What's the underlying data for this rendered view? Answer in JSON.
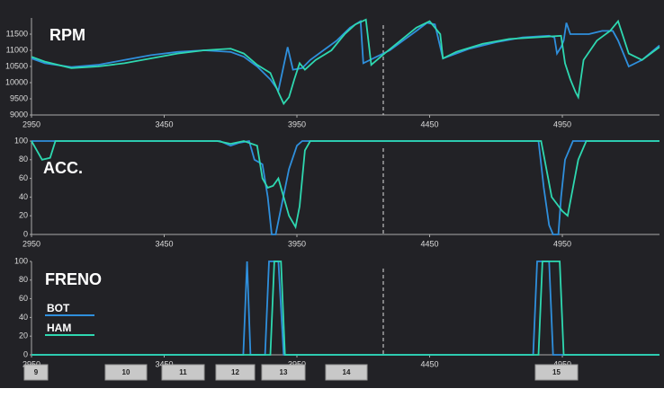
{
  "chart_data": [
    {
      "type": "line",
      "title": "RPM",
      "xlim": [
        2950,
        5316
      ],
      "xticks": [
        2950,
        3450,
        3950,
        4450,
        4950
      ],
      "ylim": [
        9000,
        12000
      ],
      "yticks": [
        9000,
        9500,
        10000,
        10500,
        11000,
        11500
      ],
      "series": [
        {
          "color": "#2f8fdc",
          "x": [
            2950,
            3000,
            3100,
            3200,
            3300,
            3400,
            3500,
            3600,
            3700,
            3750,
            3800,
            3850,
            3880,
            3915,
            3935,
            3970,
            4000,
            4050,
            4100,
            4150,
            4190,
            4200,
            4250,
            4300,
            4350,
            4400,
            4440,
            4470,
            4500,
            4550,
            4600,
            4700,
            4800,
            4900,
            4920,
            4930,
            4945,
            4955,
            4965,
            4980,
            5050,
            5100,
            5140,
            5160,
            5200,
            5250,
            5316
          ],
          "values": [
            10750,
            10600,
            10480,
            10550,
            10700,
            10850,
            10950,
            11000,
            10950,
            10800,
            10500,
            10100,
            9750,
            11100,
            10400,
            10450,
            10700,
            11000,
            11300,
            11700,
            11900,
            10600,
            10800,
            11000,
            11300,
            11600,
            11850,
            11800,
            10750,
            10900,
            11050,
            11250,
            11400,
            11450,
            11400,
            10900,
            11100,
            11300,
            11850,
            11500,
            11500,
            11600,
            11600,
            11300,
            10500,
            10700,
            11150
          ]
        },
        {
          "color": "#2ed8b0",
          "x": [
            2950,
            3000,
            3100,
            3200,
            3300,
            3400,
            3500,
            3600,
            3700,
            3750,
            3800,
            3850,
            3880,
            3900,
            3920,
            3940,
            3960,
            3980,
            4020,
            4080,
            4130,
            4170,
            4210,
            4230,
            4280,
            4340,
            4400,
            4450,
            4490,
            4500,
            4550,
            4650,
            4750,
            4850,
            4945,
            4960,
            4980,
            5000,
            5010,
            5030,
            5080,
            5130,
            5160,
            5200,
            5250,
            5316
          ],
          "values": [
            10800,
            10650,
            10450,
            10500,
            10600,
            10750,
            10900,
            11000,
            11050,
            10900,
            10550,
            10300,
            9700,
            9350,
            9550,
            10100,
            10600,
            10400,
            10700,
            11000,
            11500,
            11800,
            11950,
            10550,
            10900,
            11300,
            11700,
            11900,
            11500,
            10750,
            10950,
            11200,
            11350,
            11400,
            11450,
            10600,
            10100,
            9700,
            9550,
            10700,
            11300,
            11600,
            11900,
            10900,
            10700,
            11100
          ]
        }
      ]
    },
    {
      "type": "line",
      "title": "ACC.",
      "xlim": [
        2950,
        5316
      ],
      "xticks": [
        2950,
        3450,
        3950,
        4450,
        4950
      ],
      "ylim": [
        0,
        100
      ],
      "yticks": [
        0,
        20,
        40,
        60,
        80,
        100
      ],
      "series": [
        {
          "color": "#2f8fdc",
          "x": [
            2950,
            3660,
            3700,
            3730,
            3770,
            3790,
            3820,
            3840,
            3855,
            3870,
            3920,
            3950,
            3970,
            4860,
            4880,
            4900,
            4915,
            4935,
            4945,
            4960,
            4990,
            5316
          ],
          "values": [
            100,
            100,
            95,
            98,
            100,
            80,
            75,
            40,
            0,
            0,
            70,
            95,
            100,
            100,
            50,
            10,
            0,
            0,
            40,
            80,
            100,
            100
          ]
        },
        {
          "color": "#2ed8b0",
          "x": [
            2950,
            2970,
            2990,
            3020,
            3040,
            3650,
            3700,
            3750,
            3800,
            3820,
            3840,
            3860,
            3880,
            3900,
            3920,
            3945,
            3960,
            3980,
            4000,
            4870,
            4890,
            4910,
            4950,
            4970,
            4990,
            5010,
            5040,
            5316
          ],
          "values": [
            100,
            90,
            80,
            82,
            100,
            100,
            97,
            100,
            95,
            60,
            50,
            52,
            60,
            40,
            20,
            8,
            30,
            90,
            100,
            100,
            70,
            40,
            25,
            20,
            50,
            80,
            100,
            100
          ]
        }
      ]
    },
    {
      "type": "line",
      "title": "FRENO",
      "xlim": [
        2950,
        5316
      ],
      "xticks": [
        2950,
        3450,
        3950,
        4450,
        4950
      ],
      "ylim": [
        0,
        100
      ],
      "yticks": [
        0,
        20,
        40,
        60,
        80,
        100
      ],
      "series": [
        {
          "name": "BOT",
          "color": "#2f8fdc",
          "x": [
            2950,
            3748,
            3762,
            3775,
            3830,
            3845,
            3880,
            3900,
            4840,
            4855,
            4900,
            4915,
            5316
          ],
          "values": [
            0,
            0,
            100,
            0,
            0,
            100,
            100,
            0,
            0,
            100,
            100,
            0,
            0
          ]
        },
        {
          "name": "HAM",
          "color": "#2ed8b0",
          "x": [
            2950,
            3850,
            3865,
            3890,
            3905,
            4860,
            4875,
            4940,
            4955,
            5316
          ],
          "values": [
            0,
            0,
            100,
            100,
            0,
            0,
            100,
            100,
            0,
            0
          ]
        }
      ]
    }
  ],
  "laps": [
    "9",
    "10",
    "11",
    "12",
    "13",
    "14",
    "15"
  ]
}
